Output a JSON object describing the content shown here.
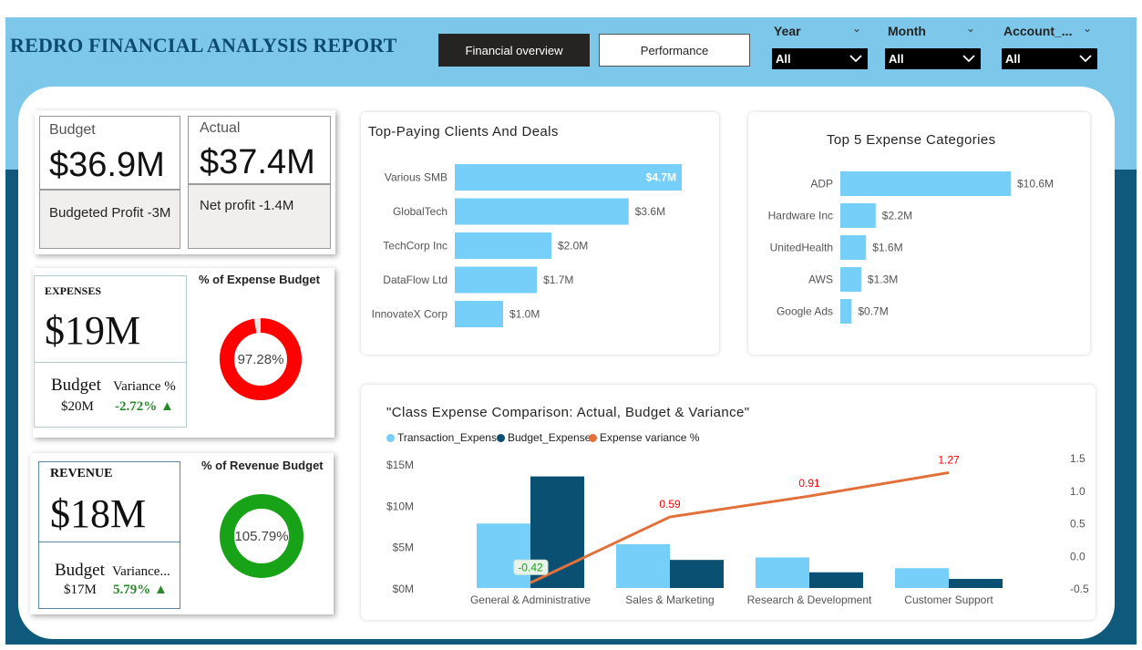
{
  "header": {
    "title": "REDRO FINANCIAL ANALYSIS REPORT",
    "tabs": [
      {
        "label": "Financial overview",
        "active": true
      },
      {
        "label": "Performance",
        "active": false
      }
    ],
    "slicers": [
      {
        "label": "Year",
        "value": "All"
      },
      {
        "label": "Month",
        "value": "All"
      },
      {
        "label": "Account_...",
        "value": "All"
      }
    ]
  },
  "kpi_budget": {
    "label": "Budget",
    "value": "$36.9M",
    "sub": "Budgeted Profit -3M"
  },
  "kpi_actual": {
    "label": "Actual",
    "value": "$37.4M",
    "sub": "Net profit -1.4M"
  },
  "expenses": {
    "title": "EXPENSES",
    "value": "$19M",
    "budget_label": "Budget",
    "budget_value": "$20M",
    "variance_label": "Variance %",
    "variance_value": "-2.72% ▲",
    "gauge_title": "% of Expense Budget",
    "gauge_value": "97.28%",
    "gauge_fraction": 0.9728
  },
  "revenue": {
    "title": "REVENUE",
    "value": "$18M",
    "budget_label": "Budget",
    "budget_value": "$17M",
    "variance_label": "Variance...",
    "variance_value": "5.79% ▲",
    "gauge_title": "% of Revenue Budget",
    "gauge_value": "105.79%",
    "gauge_fraction": 1.0
  },
  "colors": {
    "light_blue": "#75cff8",
    "dark_blue": "#0a5072",
    "orange": "#e2703a",
    "red": "#ff0000",
    "green": "#18a218",
    "variance_green": "#2a8a2a"
  },
  "chart_data": [
    {
      "type": "bar",
      "orientation": "horizontal",
      "title": "Top-Paying Clients And Deals",
      "categories": [
        "Various SMB",
        "GlobalTech",
        "TechCorp Inc",
        "DataFlow Ltd",
        "InnovateX Corp"
      ],
      "values": [
        4.7,
        3.6,
        2.0,
        1.7,
        1.0
      ],
      "labels": [
        "$4.7M",
        "$3.6M",
        "$2.0M",
        "$1.7M",
        "$1.0M"
      ],
      "xlim": [
        0,
        4.7
      ]
    },
    {
      "type": "bar",
      "orientation": "horizontal",
      "title": "Top 5 Expense Categories",
      "categories": [
        "ADP",
        "Hardware Inc",
        "UnitedHealth",
        "AWS",
        "Google Ads"
      ],
      "values": [
        10.6,
        2.2,
        1.6,
        1.3,
        0.7
      ],
      "labels": [
        "$10.6M",
        "$2.2M",
        "$1.6M",
        "$1.3M",
        "$0.7M"
      ],
      "xlim": [
        0,
        10.6
      ]
    },
    {
      "type": "bar",
      "title": "\"Class Expense Comparison: Actual, Budget & Variance\"",
      "categories": [
        "General & Administrative",
        "Sales & Marketing",
        "Research & Development",
        "Customer Support"
      ],
      "series": [
        {
          "name": "Transaction_Expense",
          "values": [
            7.8,
            5.3,
            3.7,
            2.4
          ]
        },
        {
          "name": "Budget_Expense",
          "values": [
            13.5,
            3.4,
            1.9,
            1.1
          ]
        }
      ],
      "line_series": {
        "name": "Expense variance %",
        "values": [
          -0.42,
          0.59,
          0.91,
          1.27
        ],
        "labels": [
          "-0.42",
          "0.59",
          "0.91",
          "1.27"
        ]
      },
      "ylim": [
        0,
        15
      ],
      "yticks": [
        "$0M",
        "$5M",
        "$10M",
        "$15M"
      ],
      "y2lim": [
        -0.5,
        1.5
      ],
      "y2ticks": [
        "-0.5",
        "0.0",
        "0.5",
        "1.0",
        "1.5"
      ],
      "legend": "top-left"
    }
  ]
}
